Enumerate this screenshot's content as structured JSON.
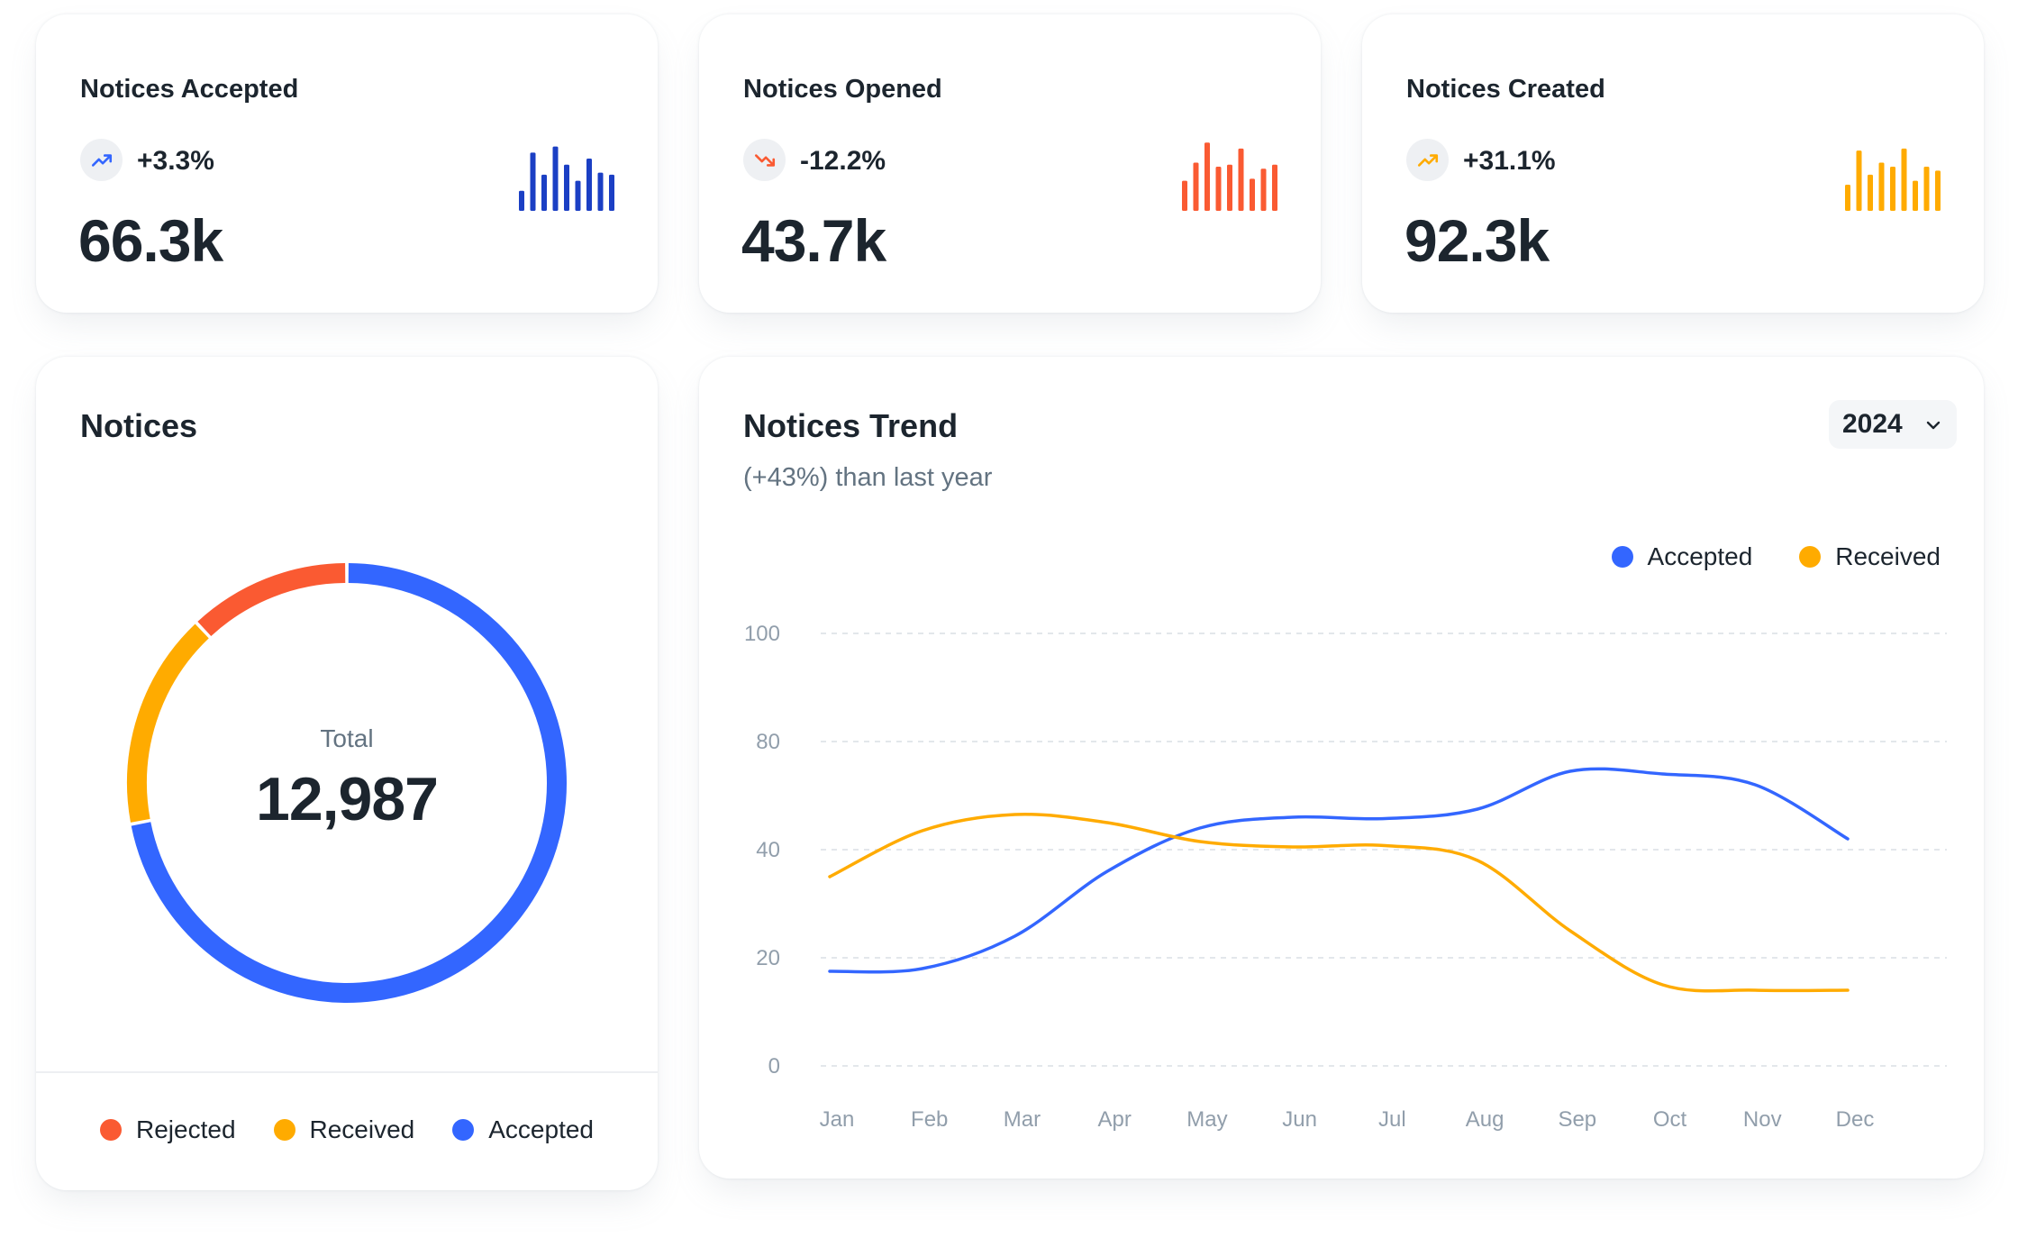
{
  "stats": [
    {
      "title": "Notices Accepted",
      "change": "+3.3%",
      "direction": "up",
      "value": "66.3k",
      "color": "#1b3fc4",
      "icon": "trending-up-icon",
      "bars": [
        20,
        58,
        36,
        64,
        46,
        30,
        52,
        38,
        36
      ]
    },
    {
      "title": "Notices Opened",
      "change": "-12.2%",
      "direction": "down",
      "value": "43.7k",
      "color": "#fa5a32",
      "icon": "trending-down-icon",
      "bars": [
        30,
        48,
        68,
        44,
        46,
        62,
        32,
        42,
        46
      ]
    },
    {
      "title": "Notices Created",
      "change": "+31.1%",
      "direction": "up",
      "value": "92.3k",
      "color": "#ffab00",
      "icon": "trending-up-icon",
      "bars": [
        26,
        60,
        36,
        48,
        44,
        62,
        30,
        44,
        40
      ]
    }
  ],
  "donut": {
    "title": "Notices",
    "total_label": "Total",
    "total_value": "12,987",
    "legend": [
      {
        "label": "Rejected",
        "color": "#fa5a32"
      },
      {
        "label": "Received",
        "color": "#ffab00"
      },
      {
        "label": "Accepted",
        "color": "#3366ff"
      }
    ]
  },
  "trend": {
    "title": "Notices Trend",
    "subtitle": "(+43%) than last year",
    "year": "2024",
    "legend": [
      {
        "label": "Accepted",
        "color": "#3366ff"
      },
      {
        "label": "Received",
        "color": "#ffab00"
      }
    ]
  },
  "chart_data": [
    {
      "type": "pie",
      "categories": [
        "Accepted",
        "Received",
        "Rejected"
      ],
      "values": [
        72,
        16,
        12
      ],
      "colors": [
        "#3366ff",
        "#ffab00",
        "#fa5a32"
      ],
      "title": "Notices"
    },
    {
      "type": "line",
      "title": "Notices Trend",
      "categories": [
        "Jan",
        "Feb",
        "Mar",
        "Apr",
        "May",
        "Jun",
        "Jul",
        "Aug",
        "Sep",
        "Oct",
        "Nov",
        "Dec"
      ],
      "y_ticks": [
        "100",
        "80",
        "40",
        "20",
        "0"
      ],
      "series": [
        {
          "name": "Accepted",
          "color": "#3366ff",
          "values": [
            17.5,
            18,
            24,
            36,
            48,
            52,
            51.5,
            55,
            69,
            68,
            64,
            44
          ]
        },
        {
          "name": "Received",
          "color": "#ffab00",
          "values": [
            35,
            47,
            53,
            50,
            43,
            41,
            41.5,
            38,
            25,
            15,
            14,
            14
          ]
        }
      ],
      "grid": true,
      "legend": "top-right"
    }
  ]
}
